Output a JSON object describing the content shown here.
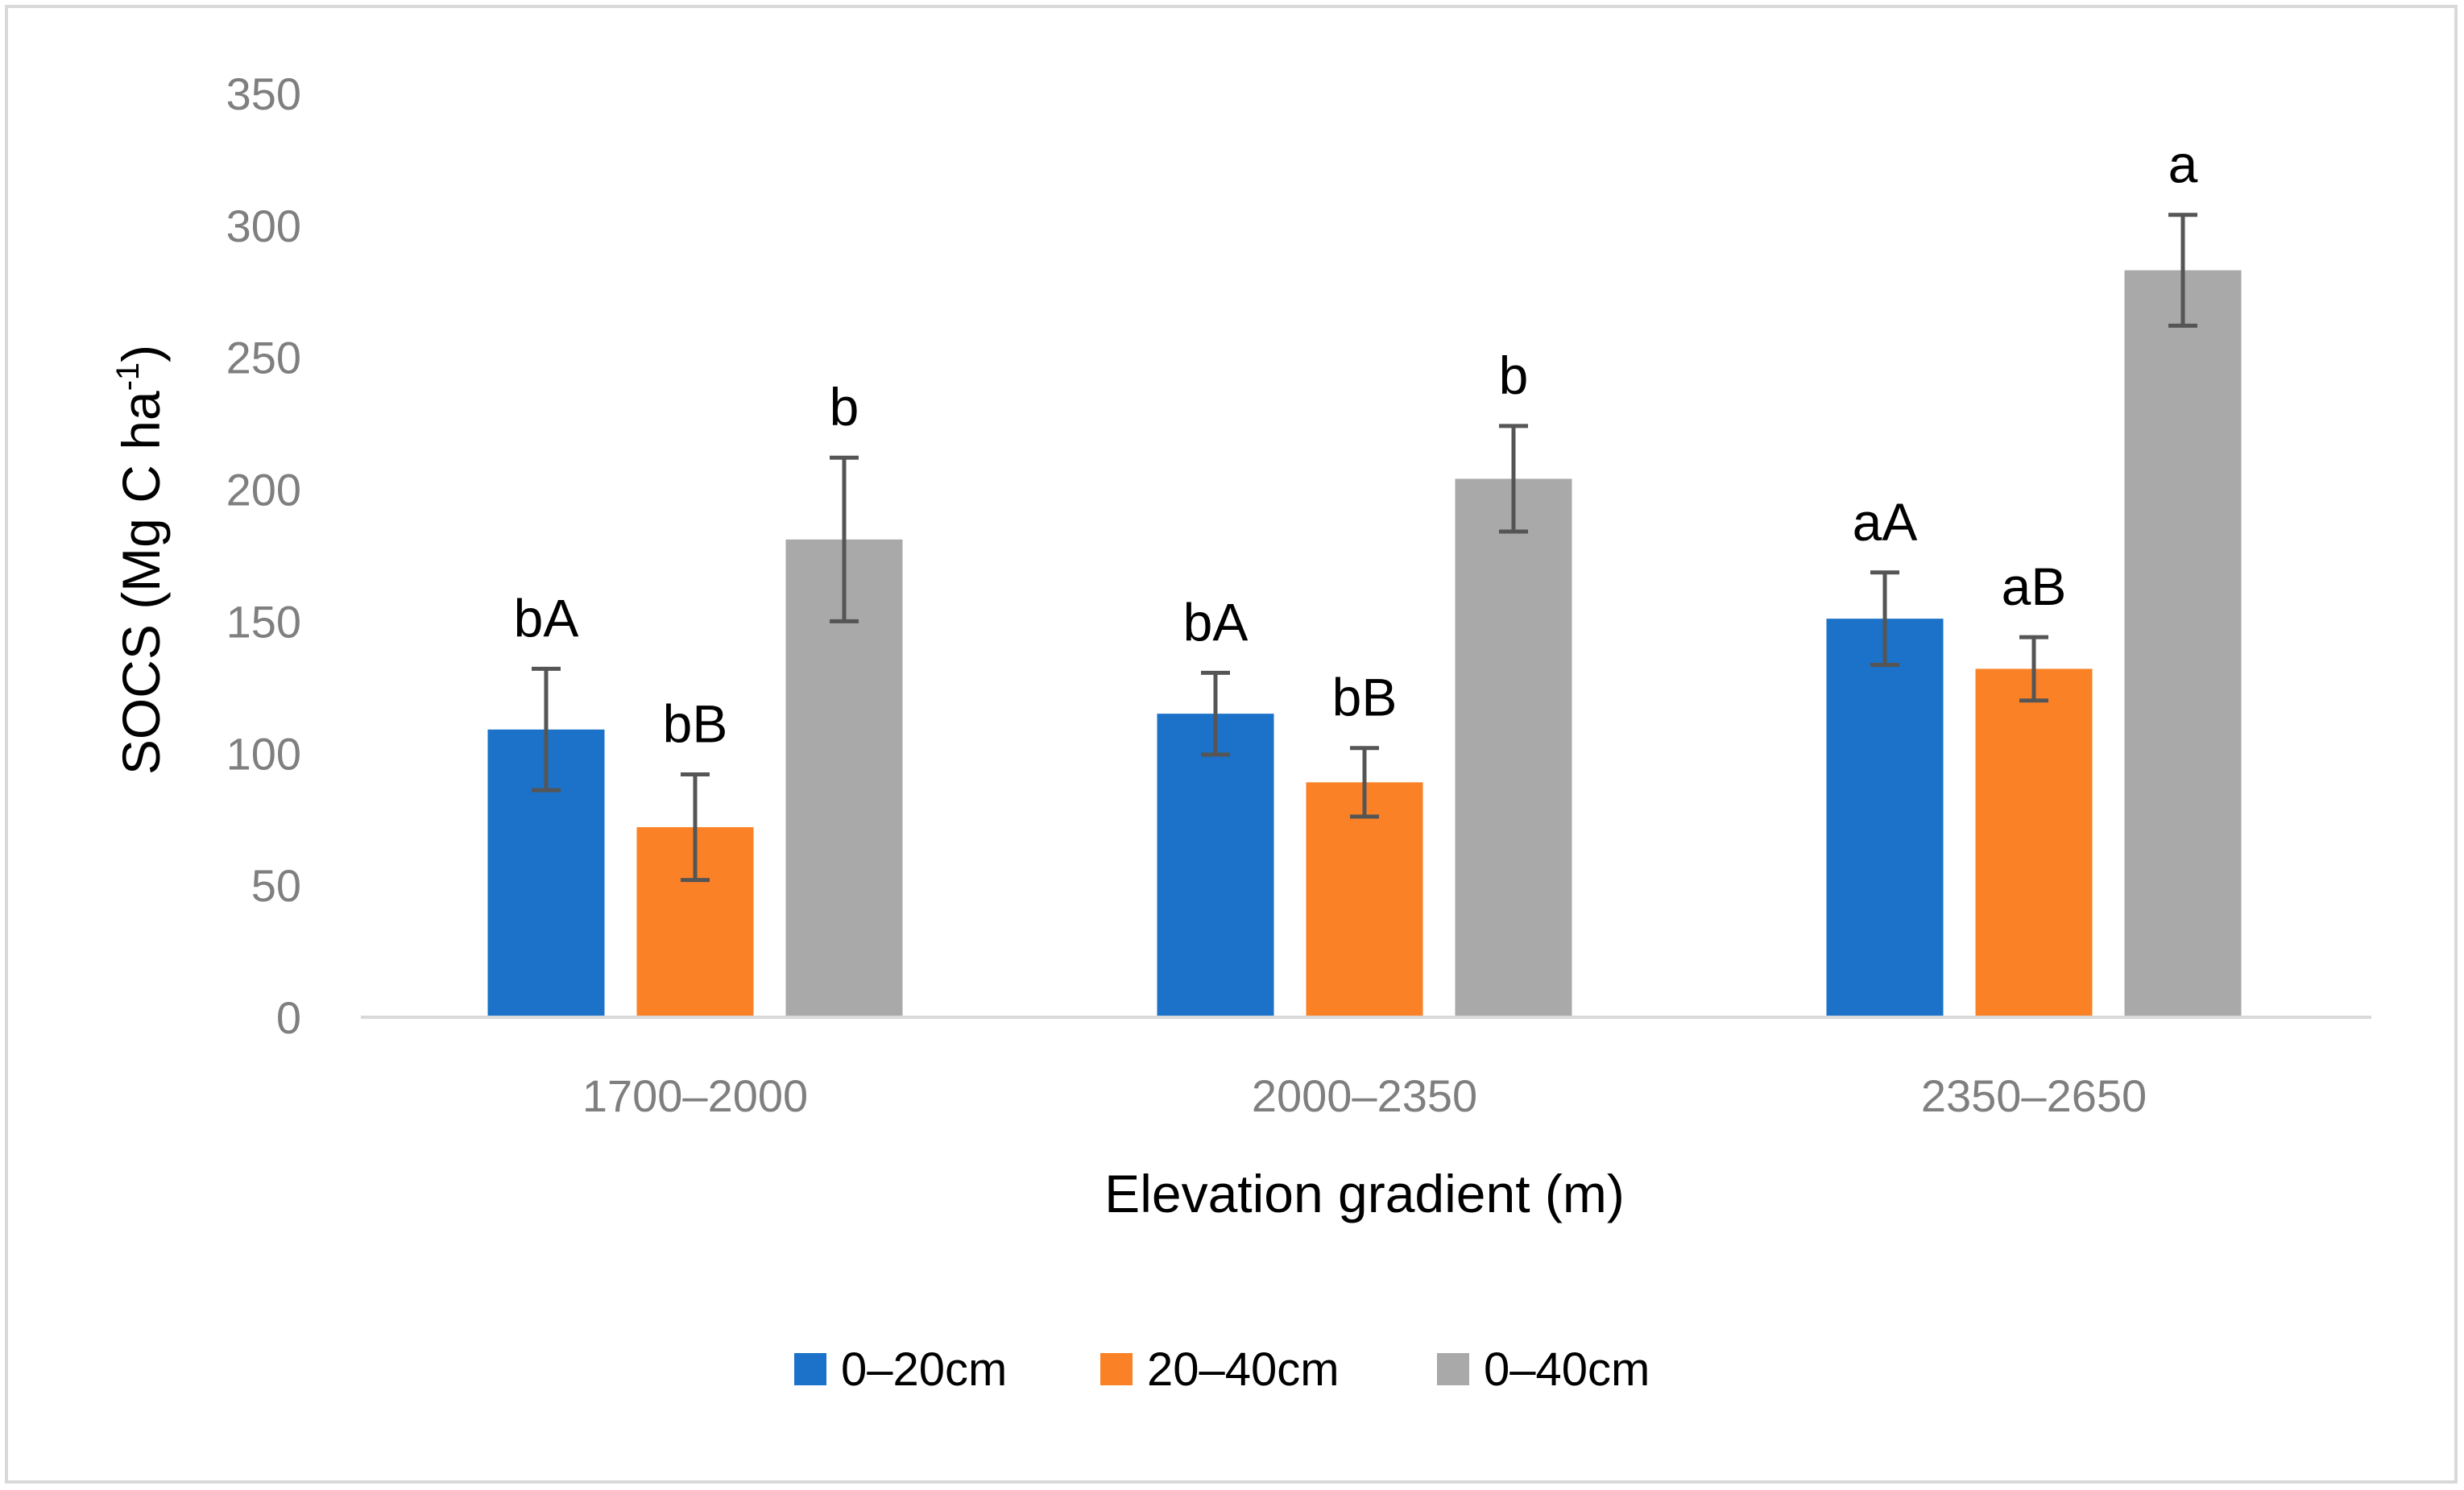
{
  "chart_data": {
    "type": "bar",
    "title": "",
    "xlabel": "Elevation gradient (m)",
    "ylabel_main": "SOCS (Mg C ha",
    "ylabel_sup": "-1",
    "ylabel_close": ")",
    "ylim": [
      0,
      350
    ],
    "yticks": [
      0,
      50,
      100,
      150,
      200,
      250,
      300,
      350
    ],
    "grid": false,
    "legend_position": "bottom",
    "categories": [
      "1700–2000",
      "2000–2350",
      "2350–2650"
    ],
    "series": [
      {
        "name": "0–20cm",
        "color": "#1b72c8",
        "values": [
          109,
          115,
          151
        ],
        "errors": [
          23,
          15.5,
          17.5
        ],
        "labels": [
          "bA",
          "bA",
          "aA"
        ]
      },
      {
        "name": "20–40cm",
        "color": "#fb8126",
        "values": [
          72,
          89,
          132
        ],
        "errors": [
          20,
          13,
          12
        ],
        "labels": [
          "bB",
          "bB",
          "aB"
        ]
      },
      {
        "name": "0–40cm",
        "color": "#a9a9a9",
        "values": [
          181,
          204,
          283
        ],
        "errors": [
          31,
          20,
          21
        ],
        "labels": [
          "b",
          "b",
          "a"
        ]
      }
    ],
    "error_bar_color": "#555555",
    "axis_color": "#d9d9d9"
  }
}
